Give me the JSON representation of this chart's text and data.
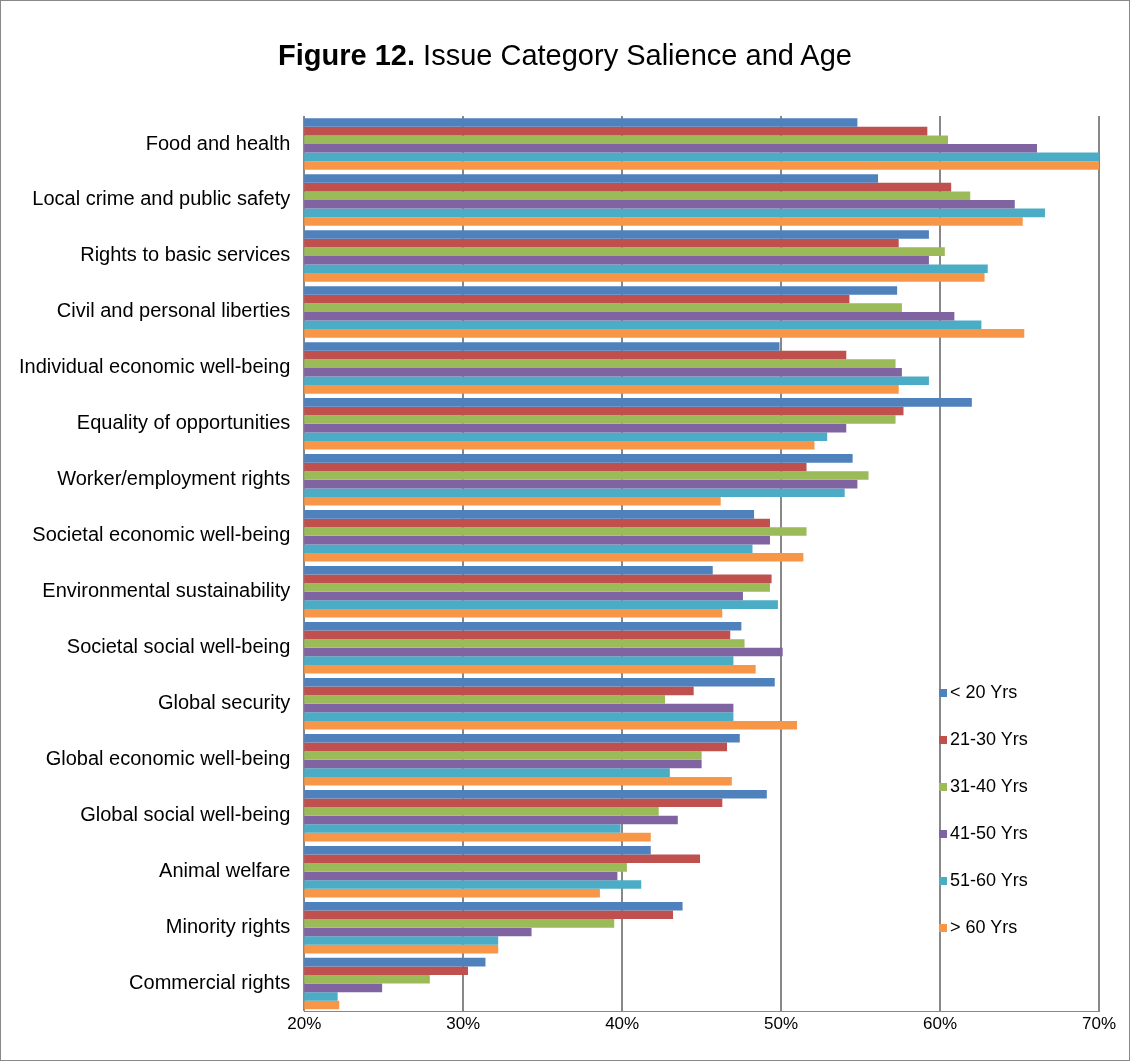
{
  "chart_data": {
    "type": "bar",
    "orientation": "horizontal",
    "title": "Figure 12. Issue Category Salience and Age",
    "categories": [
      "Food and health",
      "Local crime and public safety",
      "Rights to basic services",
      "Civil and personal liberties",
      "Individual economic well-being",
      "Equality of opportunities",
      "Worker/employment rights",
      "Societal economic well-being",
      "Environmental sustainability",
      "Societal social well-being",
      "Global security",
      "Global economic well-being",
      "Global social well-being",
      "Animal welfare",
      "Minority rights",
      "Commercial rights"
    ],
    "series": [
      {
        "name": "< 20 Yrs",
        "color": "#4f81bd",
        "values": [
          54.8,
          56.1,
          59.3,
          57.3,
          49.9,
          62.0,
          54.5,
          48.3,
          45.7,
          47.5,
          49.6,
          47.4,
          49.1,
          41.8,
          43.8,
          31.4
        ]
      },
      {
        "name": "21-30 Yrs",
        "color": "#c0504d",
        "values": [
          59.2,
          60.7,
          57.4,
          54.3,
          54.1,
          57.7,
          51.6,
          49.3,
          49.4,
          46.8,
          44.5,
          46.6,
          46.3,
          44.9,
          43.2,
          30.3
        ]
      },
      {
        "name": "31-40 Yrs",
        "color": "#9bbb59",
        "values": [
          60.5,
          61.9,
          60.3,
          57.6,
          57.2,
          57.2,
          55.5,
          51.6,
          49.3,
          47.7,
          42.7,
          45.0,
          42.3,
          40.3,
          39.5,
          27.9
        ]
      },
      {
        "name": "41-50 Yrs",
        "color": "#8064a2",
        "values": [
          66.1,
          64.7,
          59.3,
          60.9,
          57.6,
          54.1,
          54.8,
          49.3,
          47.6,
          50.1,
          47.0,
          45.0,
          43.5,
          39.7,
          34.3,
          24.9
        ]
      },
      {
        "name": "51-60 Yrs",
        "color": "#4bacc6",
        "values": [
          70,
          66.6,
          63.0,
          62.6,
          59.3,
          52.9,
          54.0,
          48.2,
          49.8,
          47.0,
          47.0,
          43.0,
          39.9,
          41.2,
          32.2,
          22.1
        ]
      },
      {
        "name": "> 60 Yrs",
        "color": "#f79646",
        "values": [
          70,
          65.2,
          62.8,
          65.3,
          57.4,
          52.1,
          46.2,
          51.4,
          46.3,
          48.4,
          51.0,
          46.9,
          41.8,
          38.6,
          32.2,
          22.2
        ]
      }
    ],
    "xlim": [
      20,
      70
    ],
    "xticks": [
      {
        "value": 20,
        "label": "20%"
      },
      {
        "value": 30,
        "label": "30%"
      },
      {
        "value": 40,
        "label": "40%"
      },
      {
        "value": 50,
        "label": "50%"
      },
      {
        "value": 60,
        "label": "60%"
      },
      {
        "value": 70,
        "label": "70%"
      }
    ],
    "grid": "x",
    "legend": "bottom right"
  }
}
